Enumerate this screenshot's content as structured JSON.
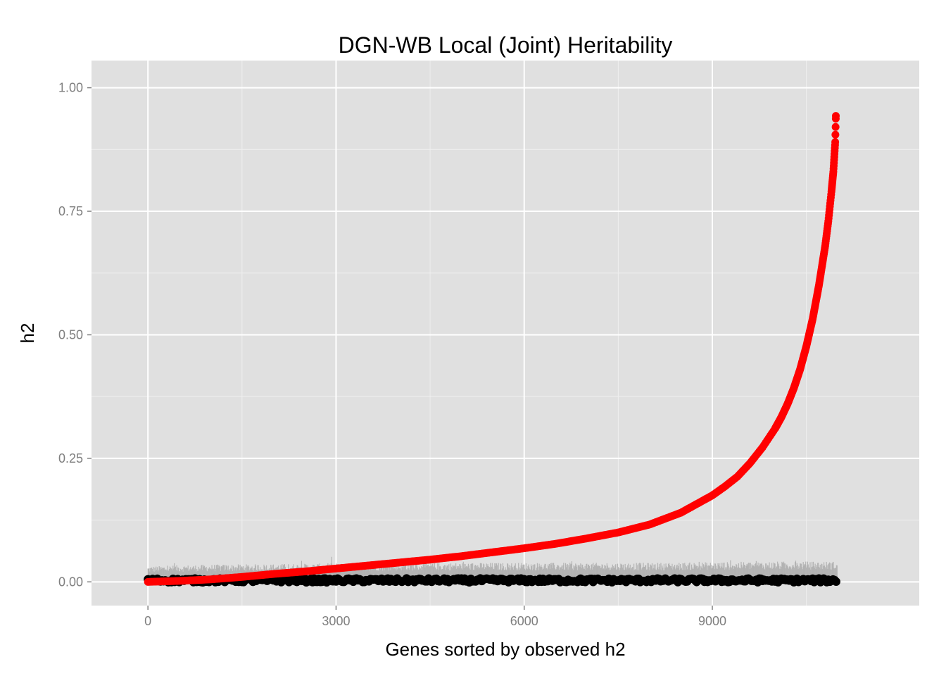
{
  "chart_data": {
    "type": "scatter",
    "title": "DGN-WB Local (Joint) Heritability",
    "xlabel": "Genes sorted by observed h2",
    "ylabel": "h2",
    "xlim": [
      -900,
      12300
    ],
    "ylim": [
      -0.048,
      1.055
    ],
    "x_ticks": [
      0,
      3000,
      6000,
      9000
    ],
    "x_tick_labels": [
      "0",
      "3000",
      "6000",
      "9000"
    ],
    "y_ticks": [
      0.0,
      0.25,
      0.5,
      0.75,
      1.0
    ],
    "y_tick_labels": [
      "0.00",
      "0.25",
      "0.50",
      "0.75",
      "1.00"
    ],
    "grid": true,
    "legend": "none",
    "n_genes": 11000,
    "series": [
      {
        "kind": "ci-upper-bars",
        "color": "#b3b3b3",
        "x": [
          0,
          500,
          1000,
          2000,
          3000,
          4000,
          5000,
          6000,
          7000,
          8000,
          9000,
          10000,
          10500,
          10950
        ],
        "y": [
          0.025,
          0.027,
          0.028,
          0.029,
          0.03,
          0.03,
          0.031,
          0.031,
          0.031,
          0.031,
          0.032,
          0.033,
          0.033,
          0.033
        ]
      },
      {
        "kind": "points",
        "color": "#000000",
        "x": [
          0,
          500,
          1000,
          2000,
          3000,
          4000,
          5000,
          6000,
          7000,
          8000,
          9000,
          10000,
          10500,
          10950
        ],
        "y": [
          0.003,
          0.003,
          0.003,
          0.003,
          0.003,
          0.003,
          0.003,
          0.003,
          0.003,
          0.003,
          0.003,
          0.003,
          0.003,
          0.003
        ]
      },
      {
        "kind": "points",
        "color": "#ff0000",
        "x": [
          0,
          500,
          1000,
          1500,
          2000,
          2500,
          3000,
          3500,
          4000,
          4500,
          5000,
          5500,
          6000,
          6500,
          7000,
          7500,
          8000,
          8500,
          9000,
          9200,
          9400,
          9600,
          9800,
          10000,
          10100,
          10200,
          10300,
          10400,
          10500,
          10600,
          10700,
          10800,
          10850,
          10900,
          10930,
          10950,
          10960,
          10965,
          10970
        ],
        "y": [
          0.0,
          0.002,
          0.005,
          0.01,
          0.016,
          0.021,
          0.027,
          0.033,
          0.039,
          0.045,
          0.052,
          0.06,
          0.068,
          0.077,
          0.088,
          0.1,
          0.116,
          0.14,
          0.175,
          0.193,
          0.213,
          0.24,
          0.272,
          0.31,
          0.333,
          0.36,
          0.392,
          0.43,
          0.477,
          0.532,
          0.6,
          0.68,
          0.73,
          0.79,
          0.83,
          0.87,
          0.89,
          0.915,
          0.943
        ]
      }
    ]
  }
}
